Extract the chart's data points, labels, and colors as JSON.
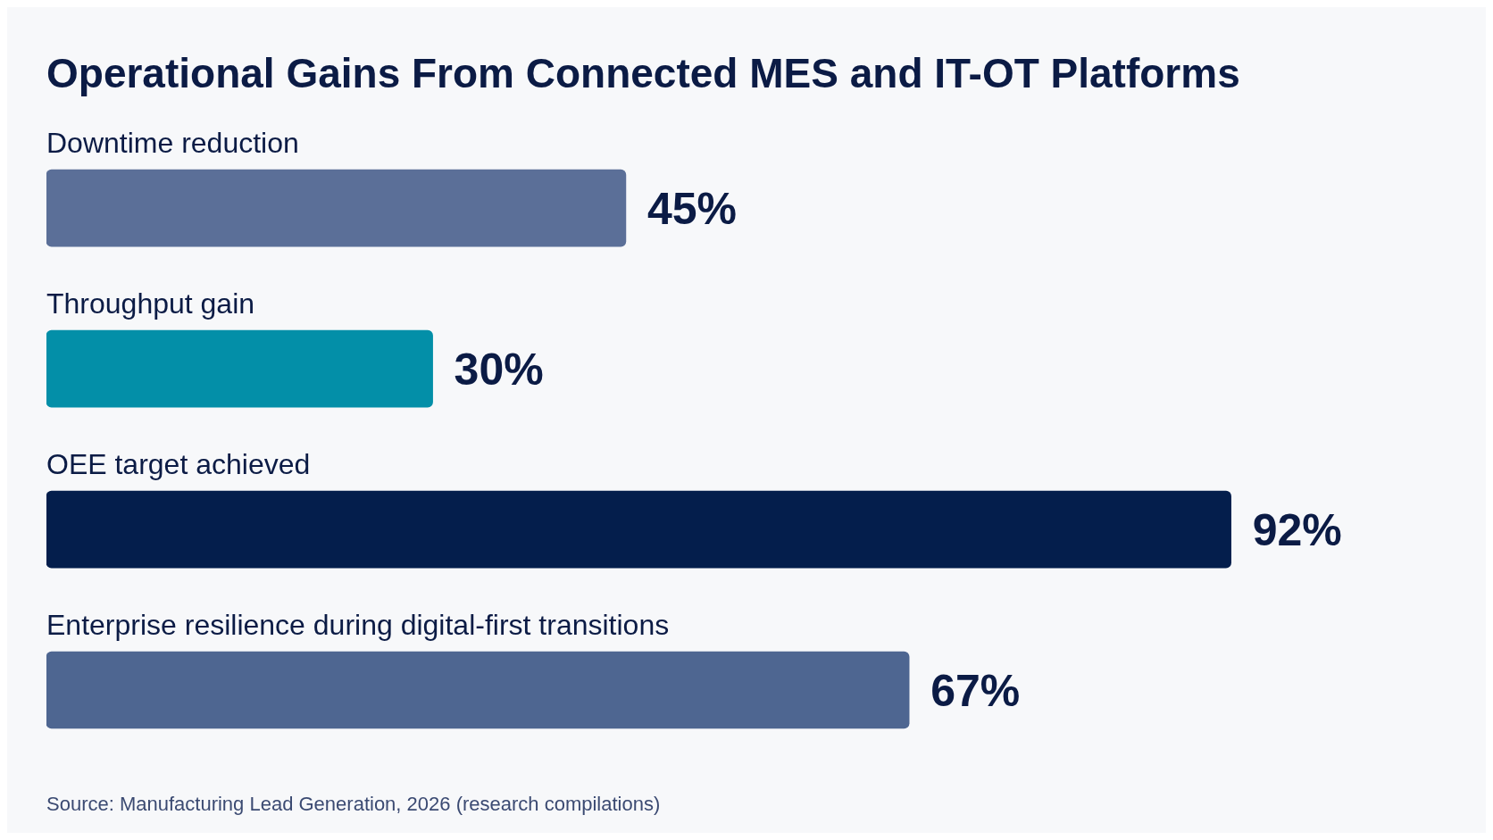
{
  "chart_data": {
    "type": "bar",
    "orientation": "horizontal",
    "title": "Operational Gains From Connected MES and IT-OT Platforms",
    "categories": [
      "Downtime reduction",
      "Throughput gain",
      "OEE target achieved",
      "Enterprise resilience during digital-first transitions"
    ],
    "values": [
      45,
      30,
      92,
      67
    ],
    "colors": [
      "#5b6f98",
      "#038fa8",
      "#041e4c",
      "#4e6691"
    ],
    "value_labels": [
      "45%",
      "30%",
      "92%",
      "67%"
    ],
    "annotations": [
      "Source: Manufacturing Lead Generation, 2026 (research compilations)"
    ],
    "legend": false
  }
}
